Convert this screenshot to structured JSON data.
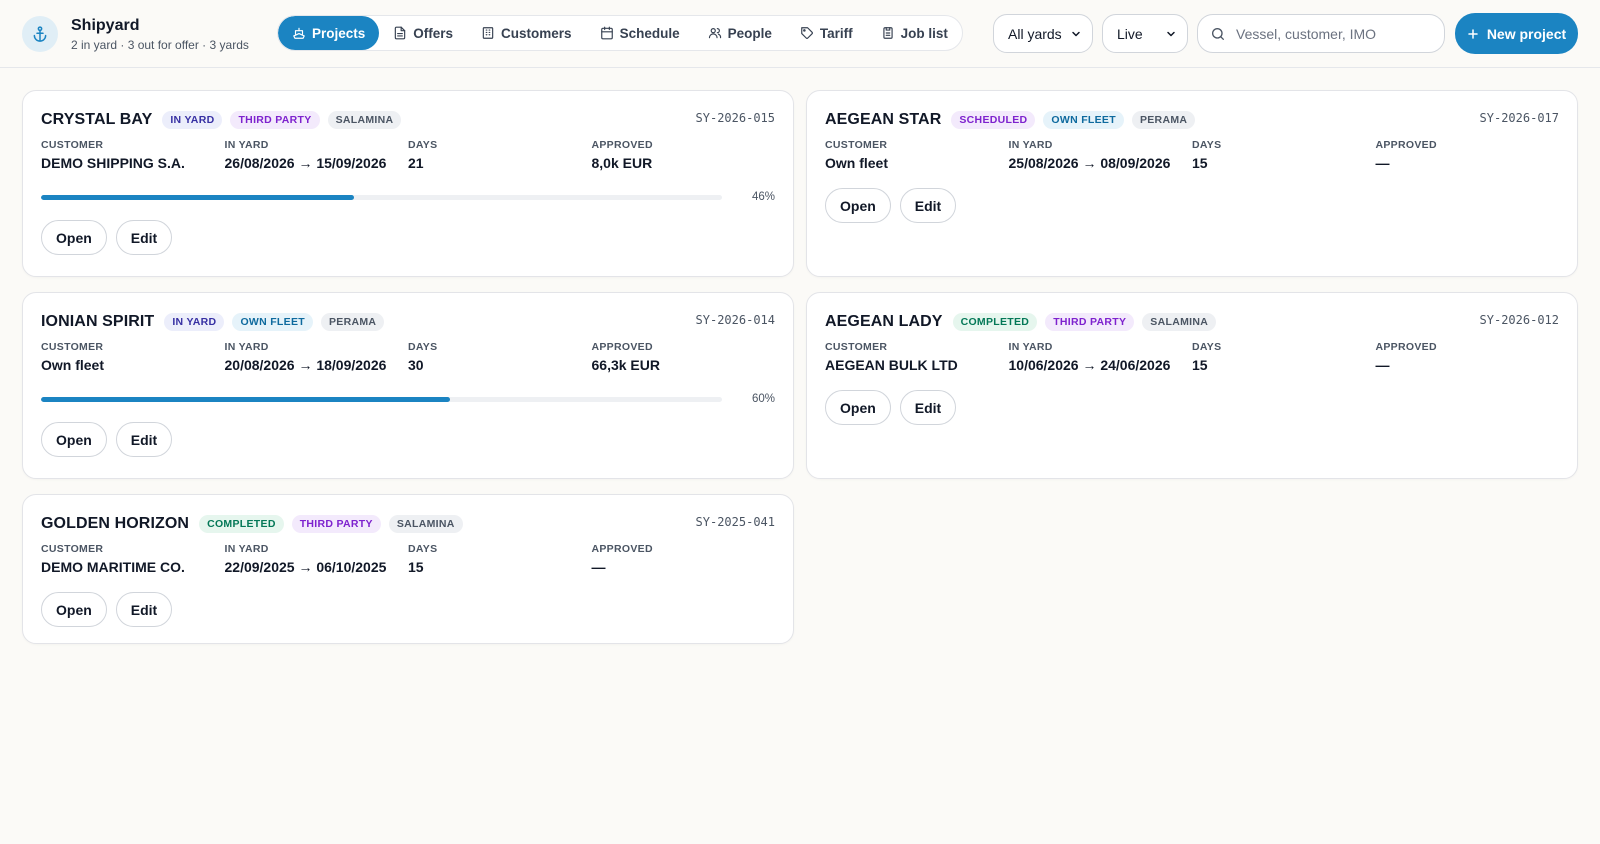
{
  "app": {
    "title": "Shipyard",
    "subtitle": "2 in yard · 3 out for offer · 3 yards",
    "logo_icon": "anchor-icon"
  },
  "nav": [
    {
      "label": "Projects",
      "icon": "ship-icon",
      "active": true
    },
    {
      "label": "Offers",
      "icon": "document-icon",
      "active": false
    },
    {
      "label": "Customers",
      "icon": "building-icon",
      "active": false
    },
    {
      "label": "Schedule",
      "icon": "calendar-icon",
      "active": false
    },
    {
      "label": "People",
      "icon": "users-icon",
      "active": false
    },
    {
      "label": "Tariff",
      "icon": "tag-icon",
      "active": false
    },
    {
      "label": "Job list",
      "icon": "clipboard-icon",
      "active": false
    }
  ],
  "filters": {
    "yard": "All yards",
    "status": "Live"
  },
  "search": {
    "placeholder": "Vessel, customer, IMO",
    "value": ""
  },
  "new_project_label": "New project",
  "labels": {
    "customer": "CUSTOMER",
    "in_yard": "IN YARD",
    "days": "DAYS",
    "approved": "APPROVED",
    "open": "Open",
    "edit": "Edit"
  },
  "projects": [
    {
      "vessel": "CRYSTAL BAY",
      "status": "IN YARD",
      "party": "THIRD PARTY",
      "yard": "SALAMINA",
      "code": "SY-2026-015",
      "customer": "DEMO SHIPPING S.A.",
      "in_yard": "26/08/2026 → 15/09/2026",
      "days": "21",
      "approved": "8,0k EUR",
      "progress": 46,
      "progress_label": "46%"
    },
    {
      "vessel": "AEGEAN STAR",
      "status": "SCHEDULED",
      "party": "OWN FLEET",
      "yard": "PERAMA",
      "code": "SY-2026-017",
      "customer": "Own fleet",
      "in_yard": "25/08/2026 → 08/09/2026",
      "days": "15",
      "approved": "—"
    },
    {
      "vessel": "IONIAN SPIRIT",
      "status": "IN YARD",
      "party": "OWN FLEET",
      "yard": "PERAMA",
      "code": "SY-2026-014",
      "customer": "Own fleet",
      "in_yard": "20/08/2026 → 18/09/2026",
      "days": "30",
      "approved": "66,3k EUR",
      "progress": 60,
      "progress_label": "60%"
    },
    {
      "vessel": "AEGEAN LADY",
      "status": "COMPLETED",
      "party": "THIRD PARTY",
      "yard": "SALAMINA",
      "code": "SY-2026-012",
      "customer": "AEGEAN BULK LTD",
      "in_yard": "10/06/2026 → 24/06/2026",
      "days": "15",
      "approved": "—"
    },
    {
      "vessel": "GOLDEN HORIZON",
      "status": "COMPLETED",
      "party": "THIRD PARTY",
      "yard": "SALAMINA",
      "code": "SY-2025-041",
      "customer": "DEMO MARITIME CO.",
      "in_yard": "22/09/2025 → 06/10/2025",
      "days": "15",
      "approved": "—"
    }
  ],
  "colors": {
    "accent": "#1b84c2",
    "background": "#fbfaf7"
  }
}
